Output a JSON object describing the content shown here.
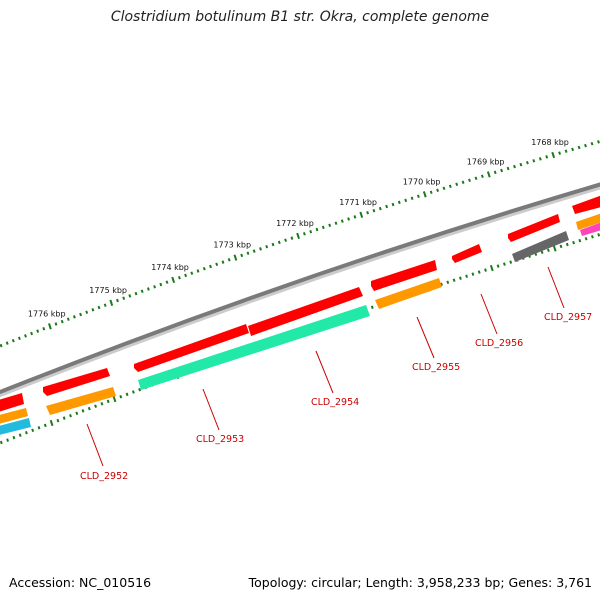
{
  "title": "Clostridium botulinum B1 str. Okra, complete genome",
  "footer": {
    "accession": "Accession: NC_010516",
    "summary": "Topology: circular; Length: 3,958,233 bp; Genes: 3,761"
  },
  "colors": {
    "backbone": "#7a7a7a",
    "tick": "#1a7a1a",
    "label": "#cc0000",
    "gene_forward": "#ff0000",
    "gene_orange": "#ff9900",
    "gene_teal": "#22e8a8",
    "gene_cyan": "#22bbdd",
    "gene_gray": "#666666",
    "gene_pink": "#ff44bb"
  },
  "scale": {
    "unit": "kbp",
    "positions": [
      1768,
      1769,
      1770,
      1771,
      1772,
      1773,
      1774,
      1775,
      1776
    ],
    "labels": [
      "1768 kbp",
      "1769 kbp",
      "1770 kbp",
      "1771 kbp",
      "1772 kbp",
      "1773 kbp",
      "1774 kbp",
      "1775 kbp",
      "1776 kbp"
    ]
  },
  "gene_labels": [
    {
      "name": "CLD_2952"
    },
    {
      "name": "CLD_2953"
    },
    {
      "name": "CLD_2954"
    },
    {
      "name": "CLD_2955"
    },
    {
      "name": "CLD_2956"
    },
    {
      "name": "CLD_2957"
    }
  ]
}
